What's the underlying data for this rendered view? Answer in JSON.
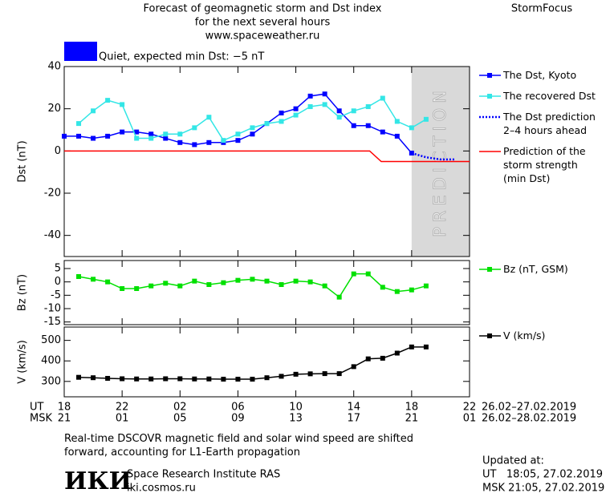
{
  "header": {
    "title": "Forecast of geomagnetic storm and Dst index",
    "subtitle": "for the next several hours",
    "url": "www.spaceweather.ru",
    "brand": "StormFocus"
  },
  "status": {
    "text": "Quiet, expected min Dst: −5 nT",
    "color": "#0000ff"
  },
  "x_axis": {
    "xlim": [
      0,
      28
    ],
    "ut_label": "UT",
    "msk_label": "MSK",
    "xticks": [
      {
        "value": 0,
        "label": "18"
      },
      {
        "value": 4,
        "label": "22"
      },
      {
        "value": 8,
        "label": "02"
      },
      {
        "value": 12,
        "label": "06"
      },
      {
        "value": 16,
        "label": "10"
      },
      {
        "value": 20,
        "label": "14"
      },
      {
        "value": 24,
        "label": "18"
      },
      {
        "value": 28,
        "label": "22"
      }
    ],
    "msk_ticks": [
      {
        "value": 0,
        "label": "21"
      },
      {
        "value": 4,
        "label": "01"
      },
      {
        "value": 8,
        "label": "05"
      },
      {
        "value": 12,
        "label": "09"
      },
      {
        "value": 16,
        "label": "13"
      },
      {
        "value": 20,
        "label": "17"
      },
      {
        "value": 24,
        "label": "21"
      },
      {
        "value": 28,
        "label": "01"
      }
    ],
    "ut_range": "26.02–27.02.2019",
    "msk_range": "26.02–28.02.2019"
  },
  "chart_data": [
    {
      "type": "line",
      "ylabel": "Dst (nT)",
      "ylim": [
        -50,
        40
      ],
      "yticks": [
        40,
        20,
        0,
        -20,
        -40
      ],
      "prediction_label": "PREDICTION",
      "series": [
        {
          "name": "The Dst, Kyoto",
          "color": "#0000ff",
          "marker": "square",
          "dash": "solid",
          "x": [
            0,
            1,
            2,
            3,
            4,
            5,
            6,
            7,
            8,
            9,
            10,
            11,
            12,
            13,
            14,
            15,
            16,
            17,
            18,
            19,
            20,
            21,
            22,
            23,
            24
          ],
          "values": [
            7,
            7,
            6,
            7,
            9,
            9,
            8,
            6,
            4,
            3,
            4,
            4,
            5,
            8,
            13,
            18,
            20,
            26,
            27,
            19,
            12,
            12,
            9,
            7,
            -1
          ]
        },
        {
          "name": "The recovered Dst",
          "color": "#33e6e6",
          "marker": "square",
          "dash": "solid",
          "x": [
            1,
            2,
            3,
            4,
            5,
            6,
            7,
            8,
            9,
            10,
            11,
            12,
            13,
            14,
            15,
            16,
            17,
            18,
            19,
            20,
            21,
            22,
            23,
            24,
            25
          ],
          "values": [
            13,
            19,
            24,
            22,
            6,
            6,
            8,
            8,
            11,
            16,
            5,
            8,
            11,
            13,
            14,
            17,
            21,
            22,
            16,
            19,
            21,
            25,
            14,
            11,
            15
          ]
        },
        {
          "name": "The Dst prediction\n2–4 hours ahead",
          "color": "#0000ff",
          "marker": "none",
          "dash": "dotted",
          "x": [
            24,
            25,
            26,
            27
          ],
          "values": [
            -1,
            -3,
            -4,
            -4
          ]
        },
        {
          "name": "Prediction of the\nstorm strength\n(min Dst)",
          "color": "#ff0000",
          "marker": "none",
          "dash": "solid",
          "x": [
            0,
            21.1,
            21.9,
            28
          ],
          "values": [
            0,
            0,
            -5,
            -5
          ]
        }
      ]
    },
    {
      "type": "line",
      "ylabel": "Bz (nT)",
      "ylim": [
        -16,
        8
      ],
      "yticks": [
        5,
        0,
        -5,
        -10,
        -15
      ],
      "series": [
        {
          "name": "Bz (nT, GSM)",
          "color": "#00e000",
          "marker": "square",
          "dash": "solid",
          "x": [
            1,
            2,
            3,
            4,
            5,
            6,
            7,
            8,
            9,
            10,
            11,
            12,
            13,
            14,
            15,
            16,
            17,
            18,
            19,
            20,
            21,
            22,
            23,
            24,
            25
          ],
          "values": [
            2,
            1,
            0,
            -2.5,
            -2.5,
            -1.5,
            -0.5,
            -1.5,
            0.3,
            -1,
            -0.3,
            0.6,
            1,
            0.3,
            -1,
            0.3,
            0,
            -1.5,
            -5.7,
            3,
            3,
            -2,
            -3.6,
            -3,
            -1.5
          ]
        }
      ]
    },
    {
      "type": "line",
      "ylabel": "V (km/s)",
      "ylim": [
        225,
        565
      ],
      "yticks": [
        500,
        400,
        300
      ],
      "series": [
        {
          "name": "V (km/s)",
          "color": "#000000",
          "marker": "square",
          "dash": "solid",
          "x": [
            1,
            2,
            3,
            4,
            5,
            6,
            7,
            8,
            9,
            10,
            11,
            12,
            13,
            14,
            15,
            16,
            17,
            18,
            19,
            20,
            21,
            22,
            23,
            24,
            25
          ],
          "values": [
            320,
            318,
            315,
            313,
            312,
            312,
            313,
            313,
            312,
            312,
            311,
            311,
            311,
            318,
            325,
            335,
            337,
            338,
            338,
            372,
            410,
            413,
            438,
            468,
            468
          ]
        }
      ]
    }
  ],
  "footer": {
    "note": "Real-time DSCOVR magnetic field and solar wind speed are shifted\nforward, accounting for L1-Earth propagation",
    "logo": "ИКИ",
    "institute": "Space Research Institute RAS",
    "site": "iki.cosmos.ru",
    "updated": "Updated at:",
    "ut_time": "UT   18:05, 27.02.2019",
    "msk_time": "MSK 21:05, 27.02.2019"
  }
}
